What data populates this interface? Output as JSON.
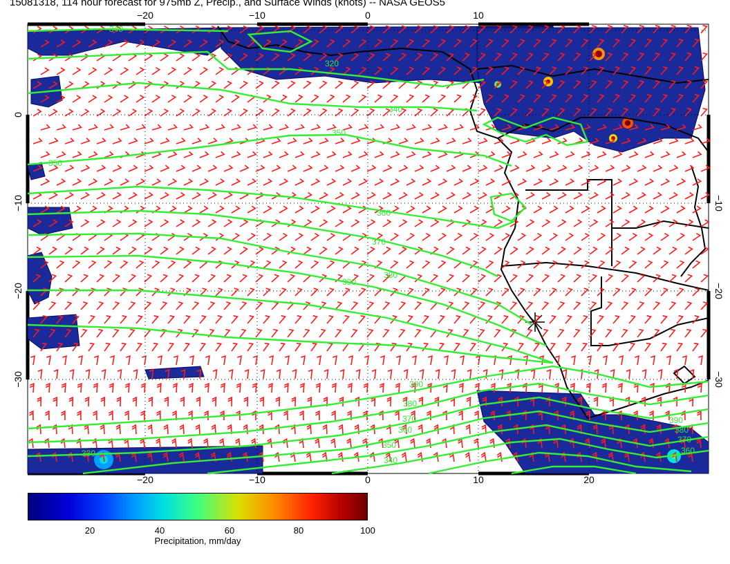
{
  "title": "15081318, 114 hour forecast for 975mb Z, Precip., and Surface Winds (knots) -- NASA GEOS5",
  "map": {
    "lon_ticks_top": [
      "−20",
      "−10",
      "0",
      "10"
    ],
    "lon_ticks_bottom": [
      "−20",
      "−10",
      "0",
      "10",
      "20"
    ],
    "lat_ticks_left": [
      "0",
      "−10",
      "−20",
      "−30"
    ],
    "lat_ticks_right": [
      "−10",
      "−20",
      "−30"
    ],
    "contour_labels": [
      "340",
      "320",
      "340",
      "350",
      "350",
      "360",
      "370",
      "380",
      "390",
      "390",
      "380",
      "370",
      "360",
      "350",
      "340",
      "330",
      "390",
      "380",
      "370",
      "360"
    ],
    "colors": {
      "contour": "#33ee33",
      "barb": "#ff1a1a",
      "coast": "#000000",
      "precip_low": "#1a2a9a"
    }
  },
  "colorbar": {
    "ticks": [
      "20",
      "40",
      "60",
      "80",
      "100"
    ],
    "label": "Precipitation, mm/day"
  }
}
